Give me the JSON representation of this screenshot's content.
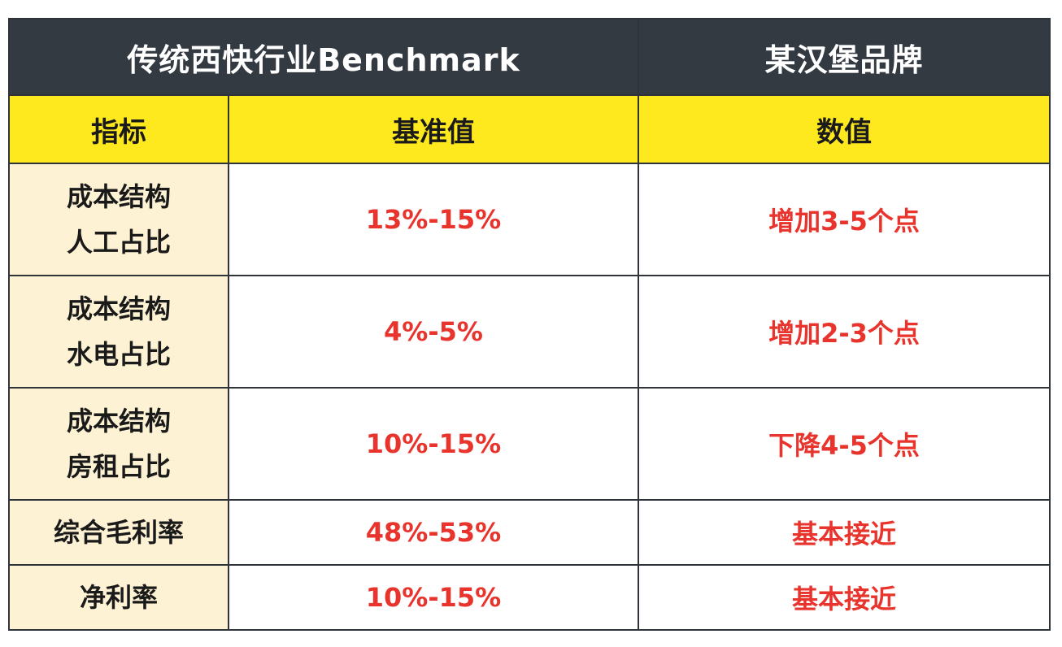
{
  "header": {
    "left_title": "传统西快行业Benchmark",
    "right_title": "某汉堡品牌"
  },
  "columns": {
    "metric": "指标",
    "benchmark": "基准值",
    "value": "数值"
  },
  "rows": [
    {
      "metric_line1": "成本结构",
      "metric_line2": "人工占比",
      "benchmark": "13%-15%",
      "value": "增加3-5个点"
    },
    {
      "metric_line1": "成本结构",
      "metric_line2": "水电占比",
      "benchmark": "4%-5%",
      "value": "增加2-3个点"
    },
    {
      "metric_line1": "成本结构",
      "metric_line2": "房租占比",
      "benchmark": "10%-15%",
      "value": "下降4-5个点"
    },
    {
      "metric_line1": "综合毛利率",
      "metric_line2": "",
      "benchmark": "48%-53%",
      "value": "基本接近"
    },
    {
      "metric_line1": "净利率",
      "metric_line2": "",
      "benchmark": "10%-15%",
      "value": "基本接近"
    }
  ],
  "colors": {
    "header_dark": "#343a42",
    "header_yellow": "#fee81e",
    "metric_bg": "#fdf2d4",
    "value_text": "#e8342c"
  }
}
